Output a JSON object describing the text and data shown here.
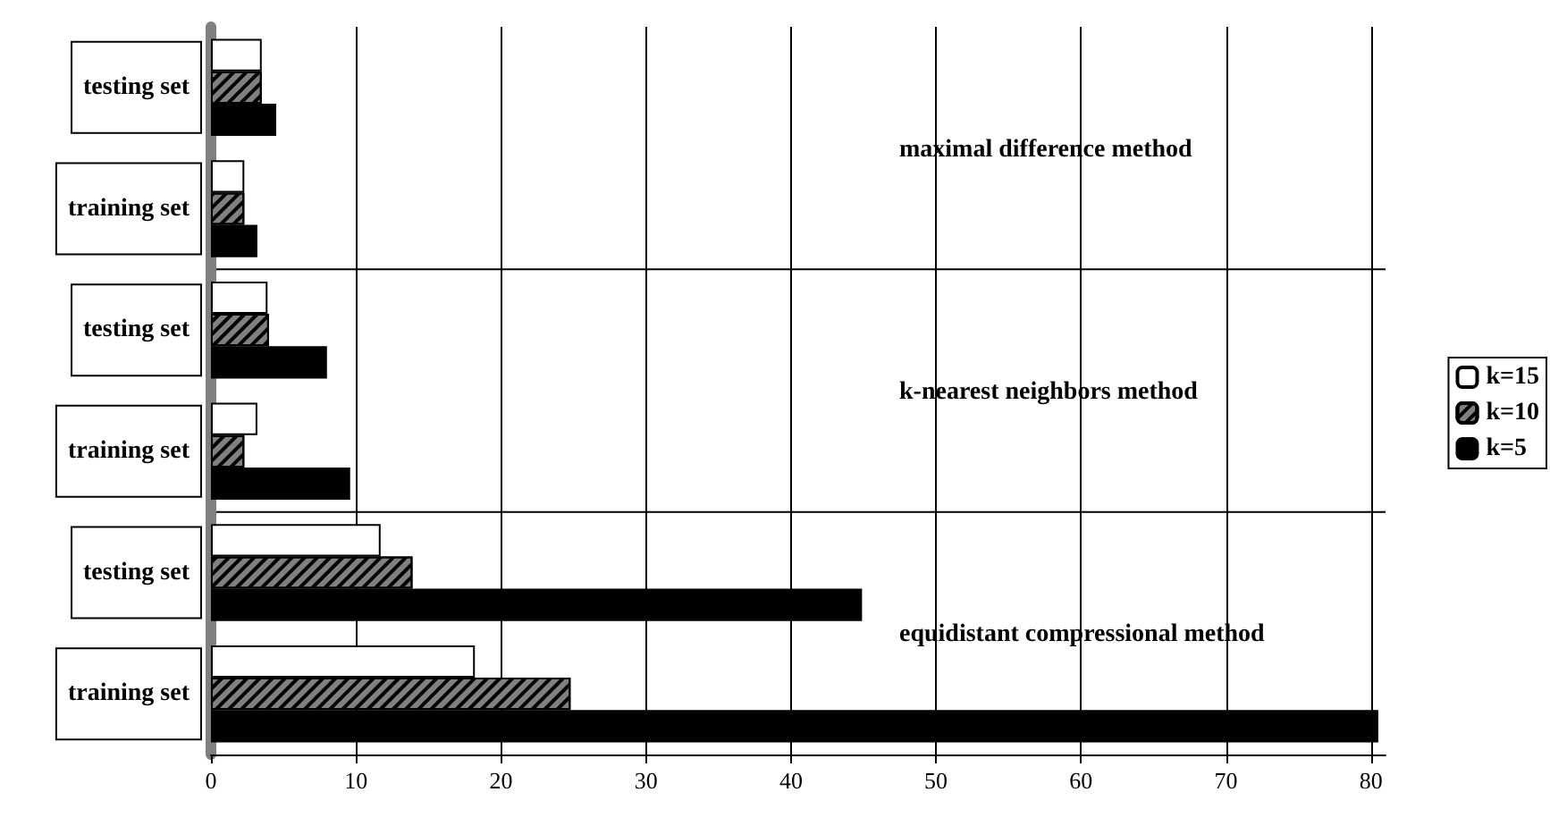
{
  "chart_data": {
    "type": "bar",
    "orientation": "horizontal",
    "categories": [
      "testing set",
      "training set",
      "testing set",
      "training set",
      "testing set",
      "training set"
    ],
    "series": [
      {
        "name": "k=15",
        "color": "#ffffff",
        "values": [
          3.5,
          2.3,
          3.9,
          3.2,
          11.7,
          18.2
        ]
      },
      {
        "name": "k=10",
        "color": "#808080",
        "values": [
          3.5,
          2.3,
          4.0,
          2.3,
          13.9,
          24.8
        ]
      },
      {
        "name": "k=5",
        "color": "#000000",
        "values": [
          4.5,
          3.2,
          8.0,
          9.6,
          44.9,
          80.5
        ]
      }
    ],
    "xlim": [
      0,
      81
    ],
    "xticks": [
      0,
      10,
      20,
      30,
      40,
      50,
      60,
      70,
      80
    ],
    "grid": "x",
    "legend": "right",
    "annotations": [
      "maximal difference method",
      "k-nearest neighbors method",
      "equidistant compressional method"
    ]
  }
}
